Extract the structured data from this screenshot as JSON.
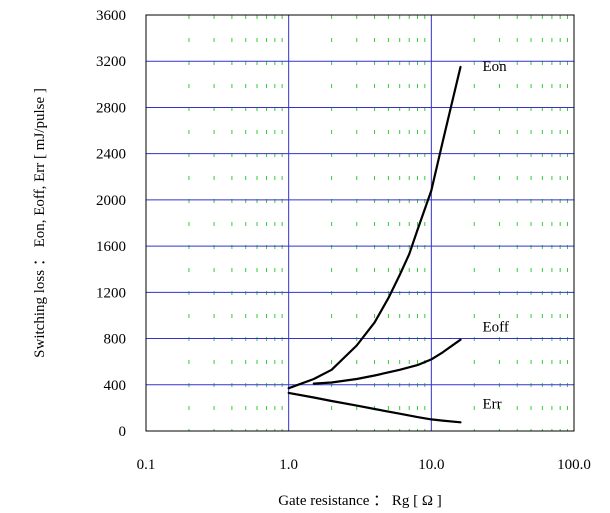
{
  "chart_data": {
    "type": "line",
    "title": "",
    "xlabel": "Gate resistance ： Rg  [ Ω ]",
    "ylabel": "Switching loss ： Eon, Eoff, Err  [ mJ/pulse ]",
    "x_scale": "log",
    "xlim": [
      0.1,
      100.0
    ],
    "ylim": [
      0,
      3600
    ],
    "x_ticks": [
      "0.1",
      "1.0",
      "10.0",
      "100.0"
    ],
    "y_ticks": [
      "0",
      "400",
      "800",
      "1200",
      "1600",
      "2000",
      "2400",
      "2800",
      "3200",
      "3600"
    ],
    "grid": {
      "major": true,
      "minor_x": true
    },
    "series": [
      {
        "name": "Eon",
        "x": [
          1.0,
          1.5,
          2.0,
          3.0,
          4.0,
          5.0,
          6.0,
          7.0,
          8.0,
          10.0,
          12.0,
          14.0,
          16.0
        ],
        "y": [
          370,
          450,
          530,
          740,
          940,
          1150,
          1350,
          1530,
          1740,
          2080,
          2500,
          2850,
          3150
        ]
      },
      {
        "name": "Eoff",
        "x": [
          1.5,
          2.0,
          3.0,
          4.0,
          6.0,
          8.0,
          10.0,
          12.0,
          16.0
        ],
        "y": [
          410,
          420,
          450,
          480,
          530,
          570,
          620,
          680,
          790
        ]
      },
      {
        "name": "Err",
        "x": [
          1.0,
          1.5,
          2.0,
          3.0,
          4.0,
          6.0,
          8.0,
          10.0,
          12.0,
          16.0
        ],
        "y": [
          330,
          290,
          260,
          220,
          190,
          150,
          120,
          100,
          90,
          75
        ]
      }
    ],
    "series_labels": [
      "Eon",
      "Eoff",
      "Err"
    ]
  }
}
